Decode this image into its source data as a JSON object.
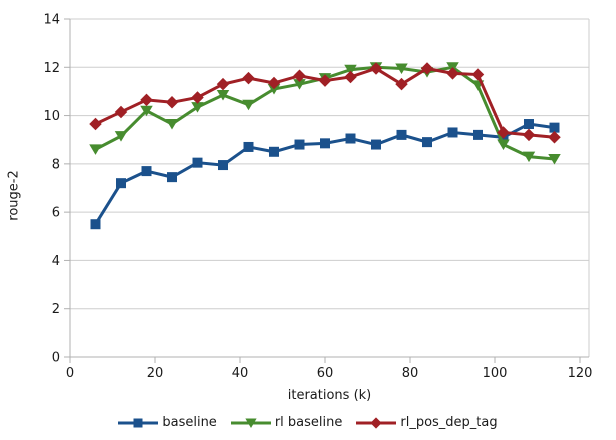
{
  "chart": {
    "ylabel": "rouge-2",
    "xlabel": "iterations (k)"
  },
  "chart_data": {
    "type": "line",
    "title": "",
    "xlabel": "iterations (k)",
    "ylabel": "rouge-2",
    "xlim": [
      0,
      120
    ],
    "ylim": [
      0,
      14
    ],
    "xticks": [
      0,
      20,
      40,
      60,
      80,
      100,
      120
    ],
    "yticks": [
      0,
      2,
      4,
      6,
      8,
      10,
      12,
      14
    ],
    "grid": "horizontal",
    "legend_position": "bottom",
    "x": [
      6,
      12,
      18,
      24,
      30,
      36,
      42,
      48,
      54,
      60,
      66,
      72,
      78,
      84,
      90,
      96,
      102,
      108,
      114
    ],
    "series": [
      {
        "name": "baseline",
        "color": "#1B518C",
        "marker": "square",
        "values": [
          5.5,
          7.2,
          7.7,
          7.45,
          8.05,
          7.95,
          8.7,
          8.5,
          8.8,
          8.85,
          9.05,
          8.8,
          9.2,
          8.9,
          9.3,
          9.2,
          9.1,
          9.65,
          9.5
        ]
      },
      {
        "name": "rl baseline",
        "color": "#478C2F",
        "marker": "triangle-down",
        "values": [
          8.6,
          9.15,
          10.2,
          9.65,
          10.35,
          10.85,
          10.45,
          11.1,
          11.3,
          11.55,
          11.9,
          12.0,
          11.95,
          11.8,
          12.0,
          11.25,
          8.8,
          8.3,
          8.2
        ]
      },
      {
        "name": "rl_pos_dep_tag",
        "color": "#A02025",
        "marker": "diamond",
        "values": [
          9.65,
          10.15,
          10.65,
          10.55,
          10.75,
          11.3,
          11.55,
          11.35,
          11.65,
          11.45,
          11.6,
          11.95,
          11.3,
          11.95,
          11.75,
          11.7,
          9.3,
          9.2,
          9.1
        ]
      }
    ],
    "axis_color": "#b0b0b0",
    "grid_color": "#cdcdcd",
    "tick_label_color": "#1a1a1a"
  }
}
